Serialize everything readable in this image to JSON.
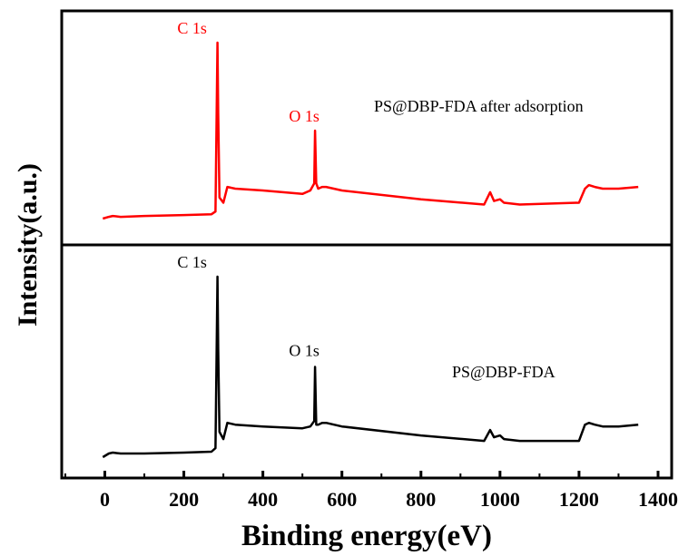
{
  "chart_data": {
    "type": "line",
    "xlabel": "Binding energy(eV)",
    "ylabel": "Intensity(a.u.)",
    "xlim": [
      -100,
      1400
    ],
    "xticks": [
      0,
      200,
      400,
      600,
      800,
      1000,
      1200,
      1400
    ],
    "grid": false,
    "panels": [
      {
        "name": "PS@DBP-FDA after adsorption",
        "color": "#ff0000",
        "peaks": [
          {
            "label": "C 1s",
            "x": 285
          },
          {
            "label": "O 1s",
            "x": 532
          }
        ],
        "x": [
          -5,
          10,
          20,
          40,
          100,
          200,
          270,
          280,
          283,
          285,
          287,
          290,
          300,
          310,
          330,
          400,
          500,
          520,
          530,
          532,
          535,
          540,
          550,
          560,
          600,
          800,
          960,
          975,
          985,
          1000,
          1010,
          1050,
          1200,
          1215,
          1225,
          1240,
          1260,
          1300,
          1350
        ],
        "y": [
          0.0,
          0.01,
          0.015,
          0.01,
          0.015,
          0.02,
          0.025,
          0.04,
          0.6,
          1.0,
          0.6,
          0.12,
          0.09,
          0.18,
          0.17,
          0.16,
          0.14,
          0.16,
          0.2,
          0.5,
          0.2,
          0.17,
          0.18,
          0.18,
          0.16,
          0.11,
          0.08,
          0.15,
          0.1,
          0.11,
          0.09,
          0.08,
          0.09,
          0.17,
          0.19,
          0.18,
          0.17,
          0.17,
          0.18
        ]
      },
      {
        "name": "PS@DBP-FDA",
        "color": "#000000",
        "peaks": [
          {
            "label": "C 1s",
            "x": 285
          },
          {
            "label": "O 1s",
            "x": 532
          }
        ],
        "x": [
          -5,
          10,
          20,
          40,
          100,
          200,
          270,
          280,
          283,
          285,
          287,
          290,
          300,
          310,
          330,
          400,
          500,
          520,
          530,
          532,
          535,
          540,
          550,
          560,
          600,
          800,
          960,
          975,
          985,
          1000,
          1010,
          1050,
          1200,
          1215,
          1225,
          1240,
          1260,
          1300,
          1350
        ],
        "y": [
          0.0,
          0.02,
          0.025,
          0.02,
          0.02,
          0.025,
          0.03,
          0.05,
          0.6,
          1.0,
          0.6,
          0.14,
          0.1,
          0.19,
          0.18,
          0.17,
          0.16,
          0.17,
          0.2,
          0.5,
          0.18,
          0.18,
          0.19,
          0.19,
          0.17,
          0.12,
          0.09,
          0.15,
          0.11,
          0.12,
          0.1,
          0.09,
          0.09,
          0.18,
          0.19,
          0.18,
          0.17,
          0.17,
          0.18
        ]
      }
    ]
  }
}
